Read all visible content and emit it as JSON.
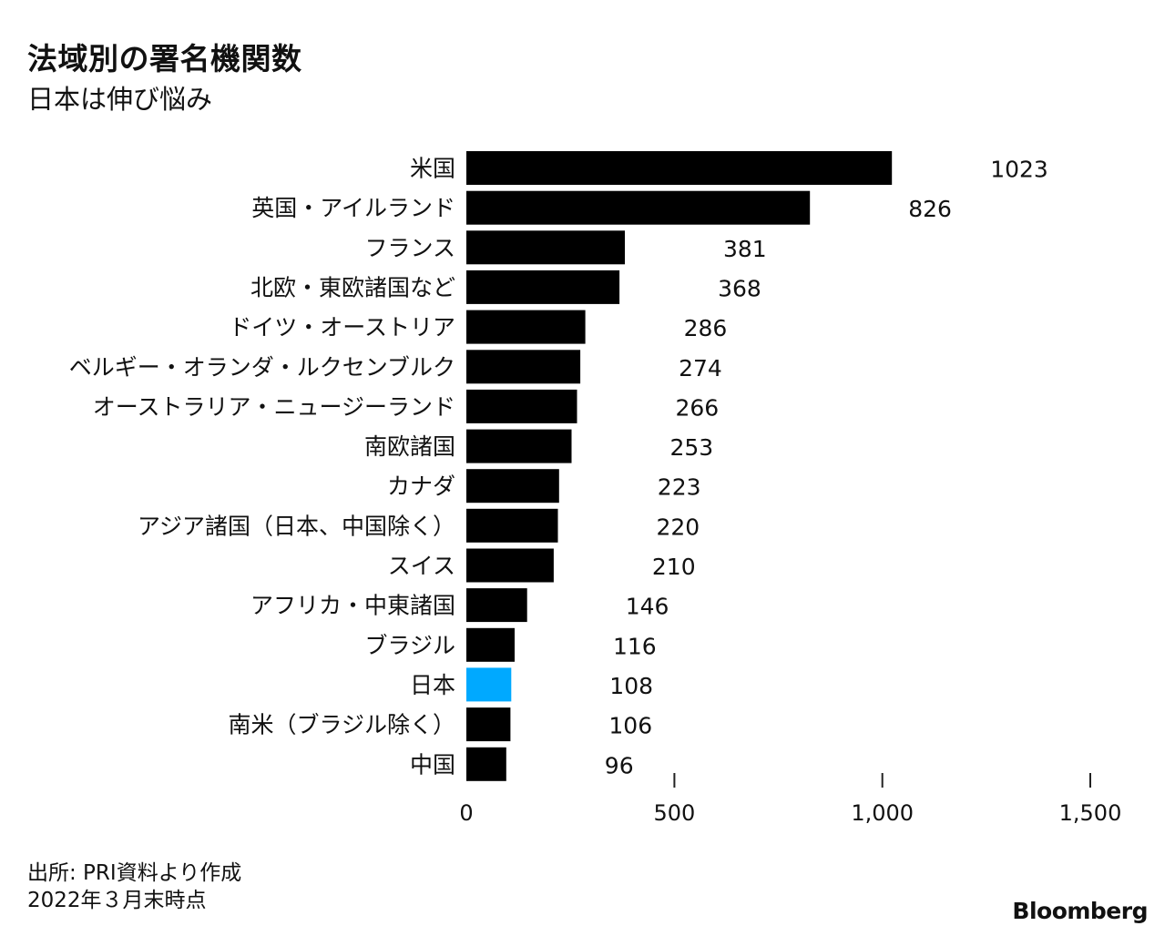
{
  "title": "法域別の署名機関数",
  "subtitle": "日本は伸び悩み",
  "source": {
    "line1": "出所: PRI資料より作成",
    "line2": "2022年３月末時点"
  },
  "brand": "Bloomberg",
  "colors": {
    "bar": "#000000",
    "highlight": "#00a9ff",
    "text": "#111111",
    "tick": "#222222"
  },
  "chart_data": {
    "type": "bar",
    "orientation": "horizontal",
    "categories": [
      "米国",
      "英国・アイルランド",
      "フランス",
      "北欧・東欧諸国など",
      "ドイツ・オーストリア",
      "ベルギー・オランダ・ルクセンブルク",
      "オーストラリア・ニュージーランド",
      "南欧諸国",
      "カナダ",
      "アジア諸国（日本、中国除く）",
      "スイス",
      "アフリカ・中東諸国",
      "ブラジル",
      "日本",
      "南米（ブラジル除く）",
      "中国"
    ],
    "values": [
      1023,
      826,
      381,
      368,
      286,
      274,
      266,
      253,
      223,
      220,
      210,
      146,
      116,
      108,
      106,
      96
    ],
    "value_labels": [
      "1023",
      "826",
      "381",
      "368",
      "286",
      "274",
      "266",
      "253",
      "223",
      "220",
      "210",
      "146",
      "116",
      "108",
      "106",
      "96"
    ],
    "highlight_category": "日本",
    "xlim": [
      0,
      1500
    ],
    "xticks": [
      0,
      500,
      1000,
      1500
    ],
    "xtick_labels": [
      "0",
      "500",
      "1,000",
      "1,500"
    ],
    "grid": false,
    "legend": "none"
  }
}
